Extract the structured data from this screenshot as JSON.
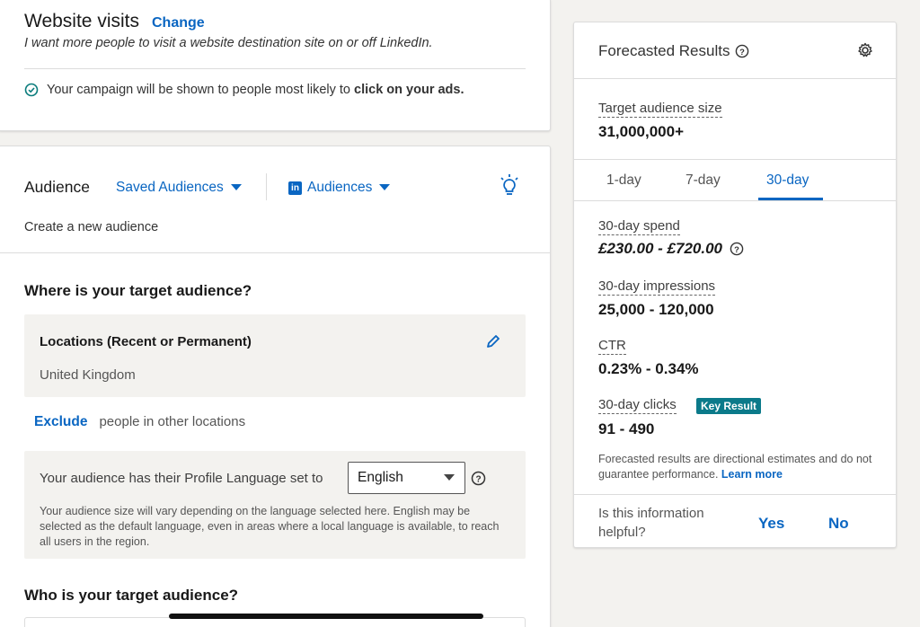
{
  "objective": {
    "title": "Website visits",
    "change_link": "Change",
    "description": "I want more people to visit a website destination site on or off LinkedIn.",
    "notice_prefix": "Your campaign will be shown to people most likely to",
    "notice_bold": "click on your ads."
  },
  "audience": {
    "heading": "Audience",
    "saved_audiences": "Saved Audiences",
    "li_audiences": "Audiences",
    "create_new": "Create a new audience",
    "where_heading": "Where is your target audience?",
    "locations_label": "Locations (Recent or Permanent)",
    "locations_value": "United Kingdom",
    "exclude_link": "Exclude",
    "exclude_text": "people in other locations",
    "language_prompt": "Your audience has their Profile Language set to",
    "language_value": "English",
    "language_note": "Your audience size will vary depending on the language selected here. English may be selected as the default language, even in areas where a local language is available, to reach all users in the region.",
    "who_heading": "Who is your target audience?"
  },
  "forecast": {
    "title": "Forecasted Results",
    "audience_size_label": "Target audience size",
    "audience_size_value": "31,000,000+",
    "tabs": [
      "1-day",
      "7-day",
      "30-day"
    ],
    "active_tab": "30-day",
    "spend_label": "30-day spend",
    "spend_value": "£230.00 - £720.00",
    "impressions_label": "30-day impressions",
    "impressions_value": "25,000 - 120,000",
    "ctr_label": "CTR",
    "ctr_value": "0.23% - 0.34%",
    "clicks_label": "30-day clicks",
    "key_result_badge": "Key Result",
    "clicks_value": "91 - 490",
    "disclaimer": "Forecasted results are directional estimates and do not guarantee performance.",
    "learn_more": "Learn more",
    "helpful_question_line1": "Is this information",
    "helpful_question_line2": "helpful?",
    "yes": "Yes",
    "no": "No"
  },
  "colors": {
    "accent": "#0a66c2",
    "badge_bg": "#0b7a8a",
    "notice_icon": "#0a7c7c",
    "page_bg": "#f3f2ef"
  }
}
